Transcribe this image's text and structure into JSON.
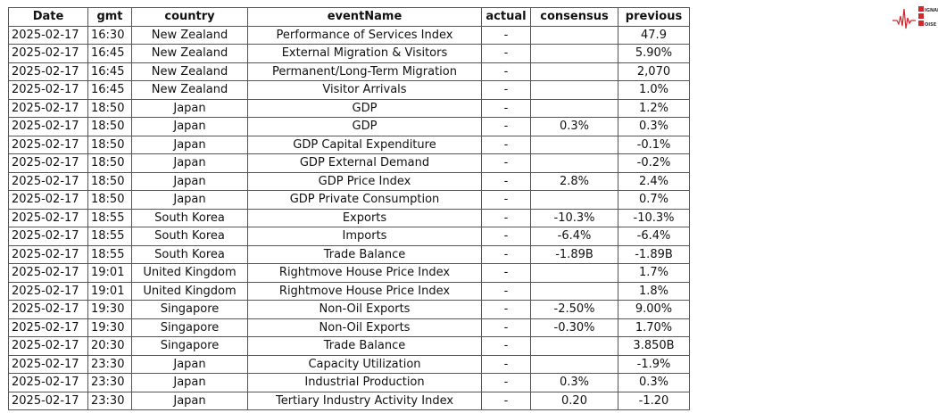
{
  "logo": {
    "text": "SIGNAL 2 NOISE",
    "accent": "#d0262e"
  },
  "table": {
    "columns": [
      "Date",
      "gmt",
      "country",
      "eventName",
      "actual",
      "consensus",
      "previous"
    ],
    "rows": [
      [
        "2025-02-17",
        "16:30",
        "New Zealand",
        "Performance of Services Index",
        "-",
        "",
        "47.9"
      ],
      [
        "2025-02-17",
        "16:45",
        "New Zealand",
        "External Migration & Visitors",
        "-",
        "",
        "5.90%"
      ],
      [
        "2025-02-17",
        "16:45",
        "New Zealand",
        "Permanent/Long-Term Migration",
        "-",
        "",
        "2,070"
      ],
      [
        "2025-02-17",
        "16:45",
        "New Zealand",
        "Visitor Arrivals",
        "-",
        "",
        "1.0%"
      ],
      [
        "2025-02-17",
        "18:50",
        "Japan",
        "GDP",
        "-",
        "",
        "1.2%"
      ],
      [
        "2025-02-17",
        "18:50",
        "Japan",
        "GDP",
        "-",
        "0.3%",
        "0.3%"
      ],
      [
        "2025-02-17",
        "18:50",
        "Japan",
        "GDP Capital Expenditure",
        "-",
        "",
        "-0.1%"
      ],
      [
        "2025-02-17",
        "18:50",
        "Japan",
        "GDP External Demand",
        "-",
        "",
        "-0.2%"
      ],
      [
        "2025-02-17",
        "18:50",
        "Japan",
        "GDP Price Index",
        "-",
        "2.8%",
        "2.4%"
      ],
      [
        "2025-02-17",
        "18:50",
        "Japan",
        "GDP Private Consumption",
        "-",
        "",
        "0.7%"
      ],
      [
        "2025-02-17",
        "18:55",
        "South Korea",
        "Exports",
        "-",
        "-10.3%",
        "-10.3%"
      ],
      [
        "2025-02-17",
        "18:55",
        "South Korea",
        "Imports",
        "-",
        "-6.4%",
        "-6.4%"
      ],
      [
        "2025-02-17",
        "18:55",
        "South Korea",
        "Trade Balance",
        "-",
        "-1.89B",
        "-1.89B"
      ],
      [
        "2025-02-17",
        "19:01",
        "United Kingdom",
        "Rightmove House Price Index",
        "-",
        "",
        "1.7%"
      ],
      [
        "2025-02-17",
        "19:01",
        "United Kingdom",
        "Rightmove House Price Index",
        "-",
        "",
        "1.8%"
      ],
      [
        "2025-02-17",
        "19:30",
        "Singapore",
        "Non-Oil Exports",
        "-",
        "-2.50%",
        "9.00%"
      ],
      [
        "2025-02-17",
        "19:30",
        "Singapore",
        "Non-Oil Exports",
        "-",
        "-0.30%",
        "1.70%"
      ],
      [
        "2025-02-17",
        "20:30",
        "Singapore",
        "Trade Balance",
        "-",
        "",
        "3.850B"
      ],
      [
        "2025-02-17",
        "23:30",
        "Japan",
        "Capacity Utilization",
        "-",
        "",
        "-1.9%"
      ],
      [
        "2025-02-17",
        "23:30",
        "Japan",
        "Industrial Production",
        "-",
        "0.3%",
        "0.3%"
      ],
      [
        "2025-02-17",
        "23:30",
        "Japan",
        "Tertiary Industry Activity Index",
        "-",
        "0.20",
        "-1.20"
      ]
    ]
  }
}
